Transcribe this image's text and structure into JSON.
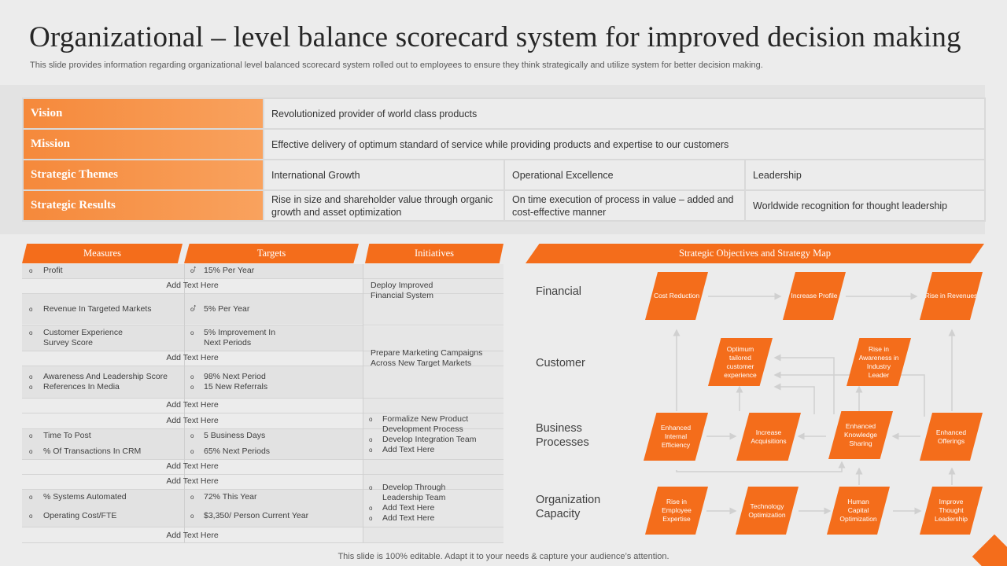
{
  "title": "Organizational – level balance scorecard system for improved decision making",
  "subtitle": "This slide provides information regarding organizational level balanced scorecard system rolled out to employees to ensure they think strategically and utilize system for better decision making.",
  "top_table": {
    "vision_label": "Vision",
    "vision_text": "Revolutionized  provider  of world class products",
    "mission_label": "Mission",
    "mission_text": "Effective  delivery  of optimum standard of service  while providing  products and expertise to our customers",
    "themes_label": "Strategic Themes",
    "themes": [
      "International  Growth",
      "Operational  Excellence",
      "Leadership"
    ],
    "results_label": "Strategic Results",
    "results": [
      "Rise in size and shareholder  value through organic growth  and asset optimization",
      "On time execution of process in value  – added and cost-effective  manner",
      "Worldwide  recognition  for thought leadership"
    ]
  },
  "headers": {
    "measures": "Measures",
    "targets": "Targets",
    "initiatives": "Initiatives",
    "map": "Strategic Objectives and Strategy Map"
  },
  "add_text": "Add Text Here",
  "measures": {
    "profit": "Profit",
    "profit_target": "15% Per Year",
    "revenue": "Revenue In Targeted Markets",
    "revenue_target": "5% Per Year",
    "cx": "Customer Experience Survey Score",
    "cx_target": "5% Improvement  In Next Periods",
    "awareness": "Awareness And Leadership Score",
    "awareness_target": "98% Next Period",
    "references": "References In  Media",
    "references_target": "15 New Referrals",
    "time": "Time To Post",
    "time_target": "5 Business Days",
    "crm": "% Of Transactions In CRM",
    "crm_target": "65% Next Periods",
    "systems": "% Systems Automated",
    "systems_target": "72% This  Year",
    "opcost": "Operating Cost/FTE",
    "opcost_target": "$3,350/ Person Current Year"
  },
  "initiatives": {
    "i1": "Deploy Improved Financial System",
    "i2": "Prepare Marketing Campaigns Across New Target Markets",
    "i3a": "Formalize New Product Development Process",
    "i3b": "Develop Integration Team",
    "i3c": "Add Text Here",
    "i4a": "Develop Through Leadership Team",
    "i4b": "Add Text Here",
    "i4c": "Add Text Here"
  },
  "map": {
    "rows": [
      "Financial",
      "Customer",
      "Business Processes",
      "Organization Capacity"
    ],
    "financial": [
      "Cost Reduction",
      "Increase Profile",
      "Rise in Revenues"
    ],
    "customer": [
      "Optimum tailored customer experience",
      "Rise in Awareness in Industry Leader"
    ],
    "business": [
      "Enhanced Internal Efficiency",
      "Increase Acquisitions",
      "Enhanced Knowledge Sharing",
      "Enhanced Offerings"
    ],
    "capacity": [
      "Rise in Employee Expertise",
      "Technology Optimization",
      "Human Capital Optimization",
      "Improve Thought Leadership"
    ]
  },
  "footer": "This slide is 100% editable. Adapt it to your needs & capture your audience’s attention.",
  "colors": {
    "accent": "#f46d1b",
    "accent_light": "#f9a25e",
    "background": "#ececec"
  }
}
